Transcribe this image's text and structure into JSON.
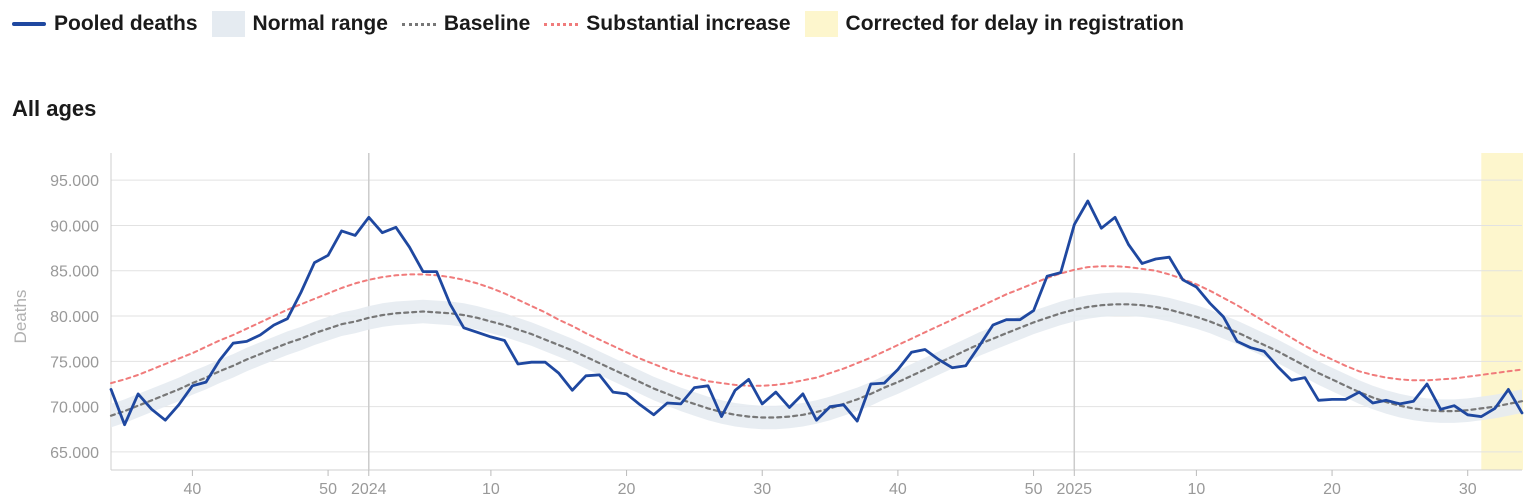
{
  "legend": {
    "items": [
      {
        "label": "Pooled deaths",
        "kind": "line",
        "color": "#1f48a0"
      },
      {
        "label": "Normal range",
        "kind": "box",
        "color": "#e5ebf1"
      },
      {
        "label": "Baseline",
        "kind": "dash",
        "color": "#777777"
      },
      {
        "label": "Substantial increase",
        "kind": "dash",
        "color": "#f07b7b"
      },
      {
        "label": "Corrected for delay in registration",
        "kind": "box",
        "color": "#fdf6cd"
      }
    ]
  },
  "panel": {
    "title": "All ages"
  },
  "chart_data": {
    "type": "line",
    "ylabel": "Deaths",
    "ylim": [
      63000,
      98000
    ],
    "y_ticks": [
      65000,
      70000,
      75000,
      80000,
      85000,
      90000,
      95000
    ],
    "y_tick_labels": [
      "65.000",
      "70.000",
      "75.000",
      "80.000",
      "85.000",
      "90.000",
      "95.000"
    ],
    "x_domain": [
      0,
      104
    ],
    "x_ticks": [
      {
        "x": 6,
        "label": "40"
      },
      {
        "x": 16,
        "label": "50"
      },
      {
        "x": 19,
        "label": "2024"
      },
      {
        "x": 28,
        "label": "10"
      },
      {
        "x": 38,
        "label": "20"
      },
      {
        "x": 48,
        "label": "30"
      },
      {
        "x": 58,
        "label": "40"
      },
      {
        "x": 68,
        "label": "50"
      },
      {
        "x": 71,
        "label": "2025"
      },
      {
        "x": 80,
        "label": "10"
      },
      {
        "x": 90,
        "label": "20"
      },
      {
        "x": 100,
        "label": "30"
      }
    ],
    "year_lines_at_x": [
      19,
      71
    ],
    "correction_period_x": [
      101,
      104
    ],
    "colors": {
      "deaths": "#1f48a0",
      "baseline": "#777777",
      "increase": "#f07b7b",
      "normal_band": "#e5ebf1",
      "correction": "#fdf6cd"
    },
    "series": [
      {
        "name": "Pooled deaths",
        "x_start": 0,
        "values": [
          71900,
          68000,
          71400,
          69700,
          68500,
          70200,
          72300,
          72700,
          75100,
          77000,
          77200,
          77900,
          79000,
          79700,
          82600,
          85900,
          86700,
          89400,
          88900,
          90900,
          89200,
          89800,
          87600,
          84900,
          84900,
          81300,
          78700,
          78200,
          77700,
          77300,
          74700,
          74900,
          74900,
          73700,
          71800,
          73400,
          73500,
          71600,
          71400,
          70200,
          69100,
          70400,
          70300,
          72100,
          72300,
          68900,
          71800,
          73000,
          70300,
          71600,
          69900,
          71400,
          68500,
          70000,
          70200,
          68400,
          72500,
          72600,
          74100,
          76000,
          76300,
          75200,
          74300,
          74500,
          76700,
          79000,
          79600,
          79600,
          80600,
          84400,
          84800,
          90100,
          92700,
          89700,
          90900,
          87900,
          85800,
          86300,
          86500,
          84000,
          83200,
          81400,
          79900,
          77200,
          76500,
          76100,
          74400,
          72900,
          73200,
          70700,
          70800,
          70800,
          71600,
          70400,
          70700,
          70300,
          70600,
          72500,
          69700,
          70100,
          69100,
          68900,
          69800,
          71900,
          69300
        ]
      },
      {
        "name": "Baseline",
        "x_start": 0,
        "values": [
          69000,
          69500,
          70100,
          70700,
          71300,
          71900,
          72600,
          73200,
          73900,
          74500,
          75200,
          75800,
          76400,
          77000,
          77500,
          78100,
          78600,
          79100,
          79400,
          79800,
          80100,
          80300,
          80400,
          80500,
          80400,
          80300,
          80100,
          79800,
          79400,
          79000,
          78500,
          78000,
          77400,
          76800,
          76200,
          75500,
          74800,
          74100,
          73400,
          72700,
          72000,
          71400,
          70800,
          70300,
          69800,
          69400,
          69100,
          68900,
          68800,
          68800,
          68900,
          69100,
          69400,
          69800,
          70300,
          70800,
          71400,
          72100,
          72700,
          73400,
          74100,
          74800,
          75500,
          76200,
          76900,
          77500,
          78100,
          78700,
          79300,
          79800,
          80300,
          80700,
          81000,
          81200,
          81300,
          81300,
          81200,
          81000,
          80700,
          80300,
          79900,
          79400,
          78800,
          78200,
          77500,
          76800,
          76100,
          75300,
          74500,
          73700,
          73000,
          72300,
          71600,
          71000,
          70500,
          70100,
          69800,
          69600,
          69500,
          69500,
          69600,
          69800,
          70000,
          70300,
          70600
        ]
      },
      {
        "name": "Substantial increase",
        "x_start": 0,
        "values": [
          72600,
          73000,
          73500,
          74100,
          74700,
          75300,
          75900,
          76600,
          77300,
          77900,
          78600,
          79300,
          80000,
          80700,
          81300,
          81900,
          82500,
          83100,
          83600,
          84000,
          84300,
          84500,
          84600,
          84600,
          84500,
          84300,
          84000,
          83600,
          83100,
          82500,
          81800,
          81100,
          80400,
          79600,
          78900,
          78100,
          77400,
          76700,
          76000,
          75300,
          74700,
          74100,
          73600,
          73200,
          72800,
          72600,
          72400,
          72300,
          72300,
          72400,
          72600,
          72900,
          73200,
          73700,
          74200,
          74800,
          75400,
          76100,
          76800,
          77500,
          78200,
          78900,
          79600,
          80300,
          81000,
          81700,
          82400,
          83000,
          83600,
          84200,
          84700,
          85100,
          85400,
          85500,
          85500,
          85400,
          85200,
          85000,
          84600,
          84100,
          83500,
          82800,
          82000,
          81200,
          80300,
          79400,
          78500,
          77600,
          76700,
          75900,
          75200,
          74500,
          73900,
          73500,
          73200,
          73000,
          72900,
          72900,
          73000,
          73100,
          73300,
          73500,
          73700,
          73900,
          74100
        ]
      }
    ],
    "normal_range_halfwidth": 1300
  }
}
